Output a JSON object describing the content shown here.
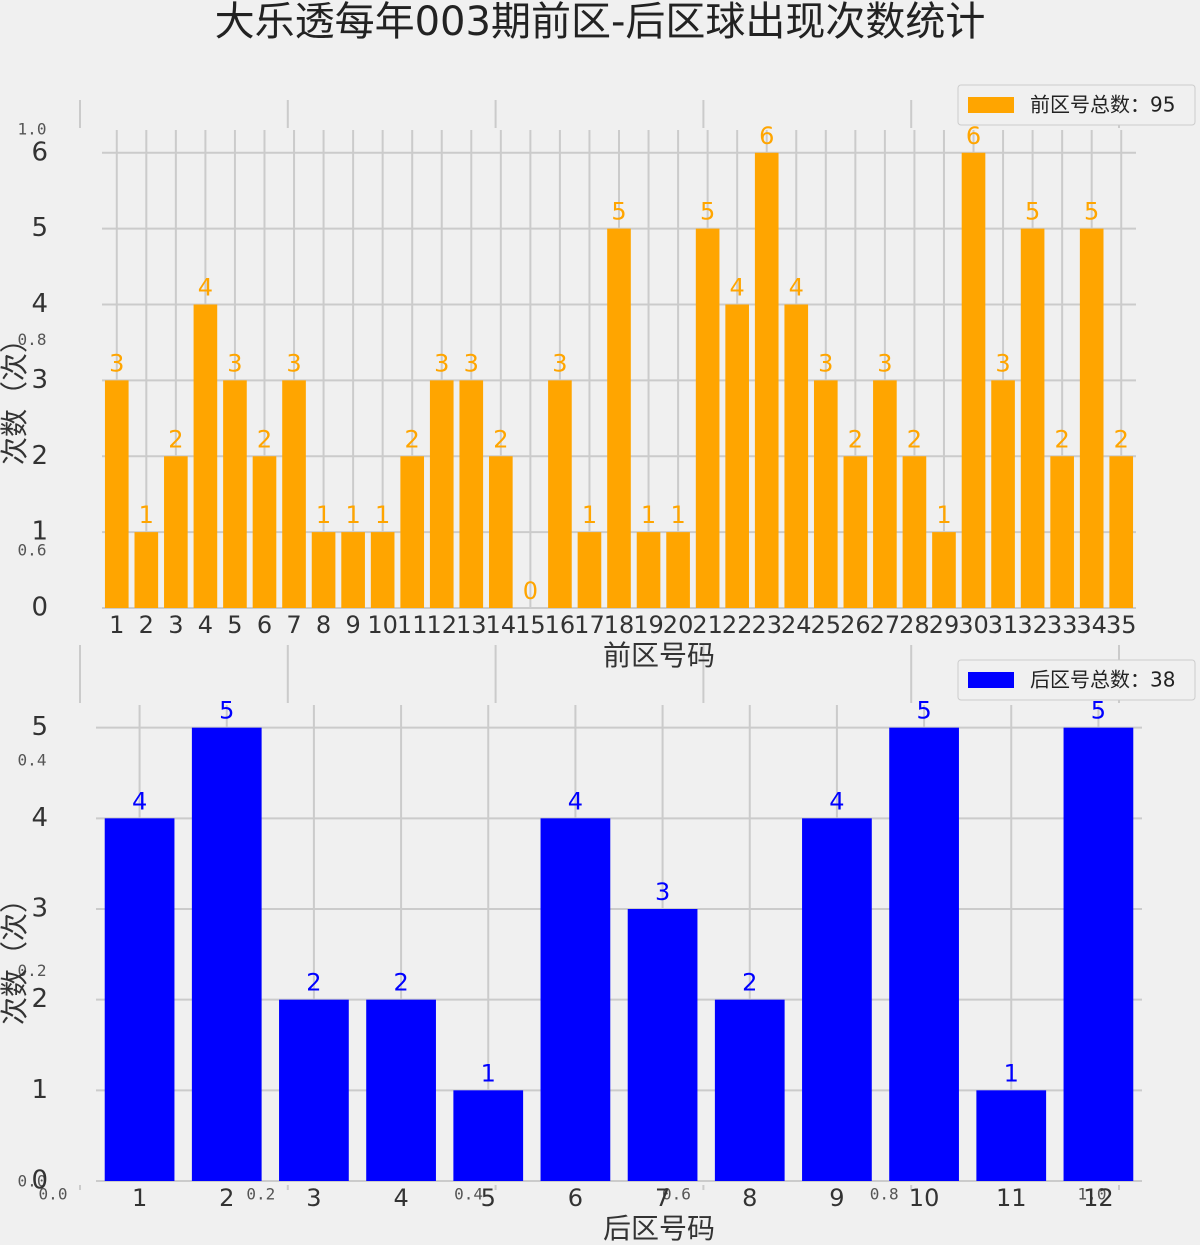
{
  "chart_data": [
    {
      "type": "axes",
      "xlim": [
        0,
        1
      ],
      "xticks": [
        {
          "value": 0,
          "label": "0.0"
        },
        {
          "value": 0.2,
          "label": "0.2"
        },
        {
          "value": 0.4,
          "label": "0.4"
        },
        {
          "value": 0.6,
          "label": "0.6"
        },
        {
          "value": 0.8,
          "label": "0.8"
        },
        {
          "value": 1,
          "label": "1.0"
        }
      ],
      "ylim": [
        0,
        1
      ],
      "yticks": [
        {
          "value": 0,
          "label": "0.0"
        },
        {
          "value": 0.2,
          "label": "0.2"
        },
        {
          "value": 0.4,
          "label": "0.4"
        },
        {
          "value": 0.6,
          "label": "0.6"
        },
        {
          "value": 0.8,
          "label": "0.8"
        },
        {
          "value": 1,
          "label": "1.0"
        }
      ],
      "grid": true
    },
    {
      "type": "bar",
      "title": "大乐透每年003期前区-后区球出现次数统计",
      "x_label": "前区号码",
      "y_label": "次数（次）",
      "categories": [
        "1",
        "2",
        "3",
        "4",
        "5",
        "6",
        "7",
        "8",
        "9",
        "10",
        "11",
        "12",
        "13",
        "14",
        "15",
        "16",
        "17",
        "18",
        "19",
        "20",
        "21",
        "22",
        "23",
        "24",
        "25",
        "26",
        "27",
        "28",
        "29",
        "30",
        "31",
        "32",
        "33",
        "34",
        "35"
      ],
      "series": [
        {
          "name": "前区号总数：95",
          "color": "#ffa500",
          "values": [
            3,
            1,
            2,
            4,
            3,
            2,
            3,
            1,
            1,
            1,
            2,
            3,
            3,
            2,
            0,
            3,
            1,
            5,
            1,
            1,
            5,
            4,
            6,
            4,
            3,
            2,
            3,
            2,
            1,
            6,
            3,
            5,
            2,
            5,
            2
          ]
        }
      ],
      "ylim": [
        0,
        6.3
      ],
      "yticks": [
        0,
        1,
        2,
        3,
        4,
        5,
        6
      ],
      "grid": true,
      "legend": "upper right"
    },
    {
      "type": "bar",
      "x_label": "后区号码",
      "y_label": "次数（次）",
      "categories": [
        "1",
        "2",
        "3",
        "4",
        "5",
        "6",
        "7",
        "8",
        "9",
        "10",
        "11",
        "12"
      ],
      "series": [
        {
          "name": "后区号总数：38",
          "color": "#0000ff",
          "values": [
            4,
            5,
            2,
            2,
            1,
            4,
            3,
            2,
            4,
            5,
            1,
            5
          ]
        }
      ],
      "ylim": [
        0,
        5.25
      ],
      "yticks": [
        0,
        1,
        2,
        3,
        4,
        5
      ],
      "grid": true,
      "legend": "upper right"
    }
  ]
}
